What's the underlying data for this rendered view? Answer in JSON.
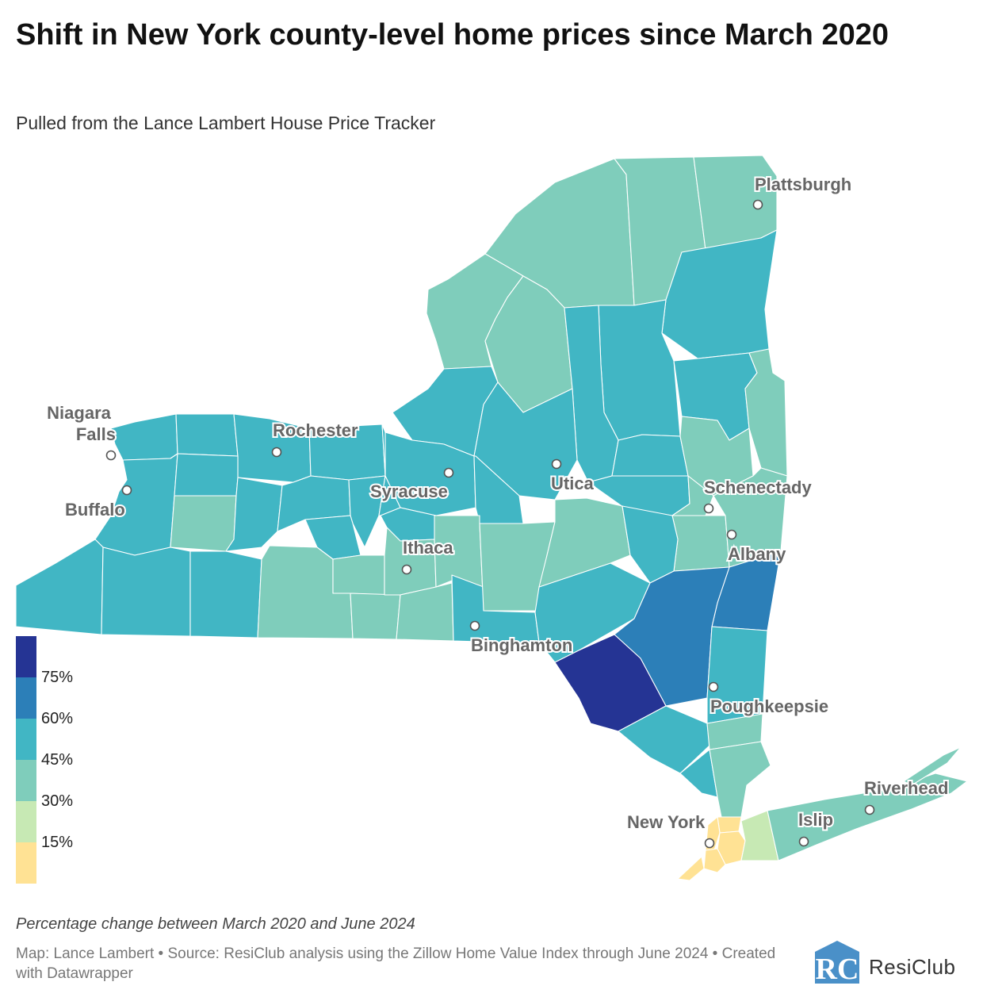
{
  "title": "Shift in New York county-level home prices since March 2020",
  "subtitle": "Pulled from the Lance Lambert House Price Tracker",
  "legend": {
    "thresholds": [
      "75%",
      "60%",
      "45%",
      "30%",
      "15%"
    ],
    "colors": [
      "#253494",
      "#2c7fb8",
      "#41b6c4",
      "#7fcdbb",
      "#c7e9b4",
      "#ffe294"
    ]
  },
  "cities": [
    {
      "name": "Plattsburgh"
    },
    {
      "name": "Niagara Falls"
    },
    {
      "name": "Rochester"
    },
    {
      "name": "Buffalo"
    },
    {
      "name": "Syracuse"
    },
    {
      "name": "Utica"
    },
    {
      "name": "Schenectady"
    },
    {
      "name": "Albany"
    },
    {
      "name": "Ithaca"
    },
    {
      "name": "Binghamton"
    },
    {
      "name": "Poughkeepsie"
    },
    {
      "name": "Riverhead"
    },
    {
      "name": "New York"
    },
    {
      "name": "Islip"
    }
  ],
  "note": "Percentage change between March 2020 and June 2024",
  "footer": "Map: Lance Lambert • Source: ResiClub analysis using the Zillow Home Value Index through June 2024 • Created with Datawrapper",
  "logo": {
    "mark": "RC",
    "text": "ResiClub",
    "color": "#4a90c8"
  }
}
